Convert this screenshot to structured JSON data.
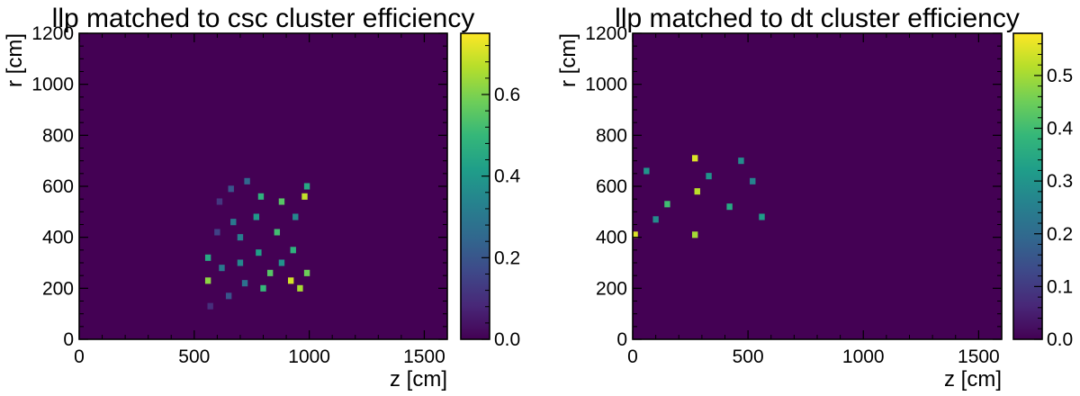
{
  "chart_data": [
    {
      "type": "heatmap",
      "title": "llp matched to csc cluster efficiency",
      "xlabel": "z [cm]",
      "ylabel": "r [cm]",
      "xlim": [
        0,
        1600
      ],
      "ylim": [
        0,
        1200
      ],
      "xticks": [
        "0",
        "500",
        "1000",
        "1500"
      ],
      "yticks": [
        "0",
        "200",
        "400",
        "600",
        "800",
        "1000",
        "1200"
      ],
      "colorbar": {
        "range": [
          0,
          0.75
        ],
        "ticks": [
          "0.0",
          "0.2",
          "0.4",
          "0.6"
        ],
        "colormap": "viridis"
      },
      "background_value": 0,
      "bin_size": {
        "z": 25,
        "r": 25
      },
      "cells": [
        {
          "z": 610,
          "r": 540,
          "value": 0.12
        },
        {
          "z": 660,
          "r": 590,
          "value": 0.2
        },
        {
          "z": 730,
          "r": 620,
          "value": 0.25
        },
        {
          "z": 790,
          "r": 560,
          "value": 0.48
        },
        {
          "z": 880,
          "r": 540,
          "value": 0.55
        },
        {
          "z": 980,
          "r": 560,
          "value": 0.68
        },
        {
          "z": 990,
          "r": 600,
          "value": 0.45
        },
        {
          "z": 940,
          "r": 480,
          "value": 0.35
        },
        {
          "z": 770,
          "r": 480,
          "value": 0.4
        },
        {
          "z": 670,
          "r": 460,
          "value": 0.3
        },
        {
          "z": 600,
          "r": 420,
          "value": 0.15
        },
        {
          "z": 560,
          "r": 320,
          "value": 0.45
        },
        {
          "z": 560,
          "r": 230,
          "value": 0.62
        },
        {
          "z": 620,
          "r": 280,
          "value": 0.3
        },
        {
          "z": 700,
          "r": 300,
          "value": 0.35
        },
        {
          "z": 780,
          "r": 340,
          "value": 0.42
        },
        {
          "z": 830,
          "r": 260,
          "value": 0.55
        },
        {
          "z": 880,
          "r": 300,
          "value": 0.38
        },
        {
          "z": 920,
          "r": 230,
          "value": 0.7
        },
        {
          "z": 960,
          "r": 200,
          "value": 0.65
        },
        {
          "z": 990,
          "r": 260,
          "value": 0.58
        },
        {
          "z": 930,
          "r": 350,
          "value": 0.48
        },
        {
          "z": 800,
          "r": 200,
          "value": 0.5
        },
        {
          "z": 650,
          "r": 170,
          "value": 0.2
        },
        {
          "z": 570,
          "r": 130,
          "value": 0.1
        },
        {
          "z": 720,
          "r": 220,
          "value": 0.28
        },
        {
          "z": 860,
          "r": 420,
          "value": 0.52
        },
        {
          "z": 700,
          "r": 400,
          "value": 0.32
        }
      ]
    },
    {
      "type": "heatmap",
      "title": "llp matched to dt cluster efficiency",
      "xlabel": "z [cm]",
      "ylabel": "r [cm]",
      "xlim": [
        0,
        1600
      ],
      "ylim": [
        0,
        1200
      ],
      "xticks": [
        "0",
        "500",
        "1000",
        "1500"
      ],
      "yticks": [
        "0",
        "200",
        "400",
        "600",
        "800",
        "1000",
        "1200"
      ],
      "colorbar": {
        "range": [
          0,
          0.58
        ],
        "ticks": [
          "0.0",
          "0.1",
          "0.2",
          "0.3",
          "0.4",
          "0.5"
        ],
        "colormap": "viridis"
      },
      "background_value": 0,
      "bin_size": {
        "z": 25,
        "r": 25
      },
      "cells": [
        {
          "z": 10,
          "r": 410,
          "value": 0.55
        },
        {
          "z": 270,
          "r": 410,
          "value": 0.5
        },
        {
          "z": 280,
          "r": 580,
          "value": 0.52
        },
        {
          "z": 270,
          "r": 710,
          "value": 0.55
        },
        {
          "z": 150,
          "r": 530,
          "value": 0.4
        },
        {
          "z": 420,
          "r": 520,
          "value": 0.35
        },
        {
          "z": 60,
          "r": 660,
          "value": 0.3
        },
        {
          "z": 330,
          "r": 640,
          "value": 0.3
        },
        {
          "z": 470,
          "r": 700,
          "value": 0.28
        },
        {
          "z": 560,
          "r": 480,
          "value": 0.32
        },
        {
          "z": 100,
          "r": 470,
          "value": 0.28
        },
        {
          "z": 520,
          "r": 620,
          "value": 0.26
        }
      ]
    }
  ]
}
